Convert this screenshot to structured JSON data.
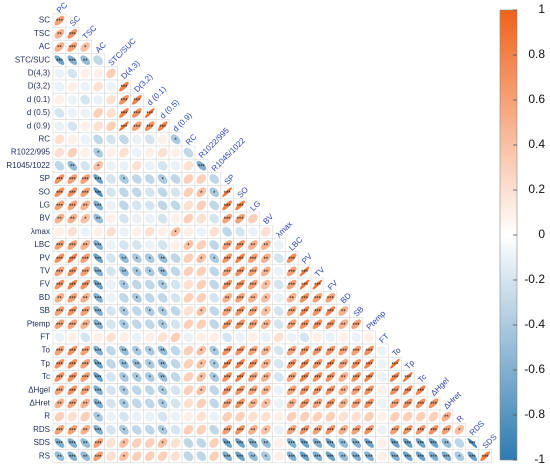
{
  "chart_data": {
    "type": "correlation",
    "variables": [
      "PC",
      "SC",
      "TSC",
      "AC",
      "STC/SUC",
      "D(4,3)",
      "D(3,2)",
      "d (0.1)",
      "d (0.5)",
      "d (0.9)",
      "RC",
      "R1022/995",
      "R1045/1022",
      "SP",
      "SO",
      "LG",
      "BV",
      "λmax",
      "LBC",
      "PV",
      "TV",
      "FV",
      "BD",
      "SB",
      "Ptemp",
      "FT",
      "To",
      "Tp",
      "Tc",
      "ΔHgel",
      "ΔHret",
      "R",
      "RDS",
      "SDS",
      "RS"
    ],
    "values": [
      [
        0.6
      ],
      [
        0.5,
        0.7
      ],
      [
        0.5,
        0.6,
        0.4
      ],
      [
        -0.7,
        -0.6,
        -0.5,
        -0.3
      ],
      [
        -0.1,
        -0.2,
        0.1,
        0.1,
        0.3
      ],
      [
        -0.1,
        0.1,
        -0.1,
        0.2,
        -0.1,
        0.8
      ],
      [
        0.1,
        -0.1,
        -0.2,
        -0.1,
        0.2,
        0.7,
        0.8
      ],
      [
        -0.2,
        -0.1,
        -0.1,
        0.3,
        0.2,
        0.8,
        0.7,
        0.9
      ],
      [
        -0.1,
        -0.2,
        0.1,
        0.2,
        0.3,
        0.9,
        0.6,
        0.7,
        0.8
      ],
      [
        0.2,
        0.1,
        -0.1,
        -0.3,
        -0.2,
        -0.3,
        -0.1,
        -0.2,
        0.1,
        -0.4
      ],
      [
        0.2,
        0.3,
        0.1,
        -0.4,
        0.1,
        0.2,
        -0.1,
        0.1,
        0.2,
        0.1,
        -0.3
      ],
      [
        -0.3,
        -0.5,
        -0.2,
        0.4,
        -0.1,
        -0.1,
        0.2,
        -0.1,
        -0.2,
        -0.1,
        0.2,
        -0.6
      ],
      [
        0.7,
        0.6,
        0.6,
        -0.7,
        -0.2,
        -0.4,
        -0.3,
        -0.3,
        -0.4,
        -0.3,
        0.3,
        0.3,
        -0.3
      ],
      [
        0.7,
        0.7,
        0.6,
        -0.8,
        -0.2,
        -0.3,
        -0.3,
        -0.2,
        -0.3,
        -0.2,
        0.3,
        0.4,
        -0.4,
        0.9
      ],
      [
        0.6,
        0.6,
        0.5,
        -0.6,
        -0.1,
        -0.3,
        -0.2,
        -0.2,
        -0.3,
        -0.3,
        0.2,
        0.3,
        -0.3,
        0.8,
        0.8
      ],
      [
        0.5,
        0.5,
        0.4,
        -0.5,
        0.1,
        -0.2,
        -0.1,
        -0.1,
        -0.2,
        0.1,
        0.3,
        0.2,
        -0.2,
        0.6,
        0.6,
        0.3
      ],
      [
        0.1,
        0.2,
        -0.1,
        0.1,
        0.2,
        -0.1,
        0.1,
        0.2,
        0.1,
        0.4,
        0.1,
        -0.1,
        0.2,
        -0.3,
        -0.2,
        -0.1,
        0.2
      ],
      [
        0.6,
        0.6,
        0.5,
        -0.6,
        -0.1,
        -0.2,
        -0.2,
        -0.1,
        -0.2,
        0.1,
        0.4,
        0.3,
        -0.3,
        0.6,
        0.7,
        0.5,
        0.5,
        -0.1
      ],
      [
        0.7,
        0.8,
        0.6,
        -0.7,
        -0.2,
        -0.5,
        -0.4,
        -0.4,
        -0.5,
        -0.3,
        0.3,
        0.4,
        -0.4,
        0.7,
        0.8,
        0.6,
        0.5,
        -0.2,
        0.7
      ],
      [
        0.6,
        0.7,
        0.6,
        -0.6,
        -0.2,
        -0.5,
        -0.4,
        -0.4,
        -0.5,
        -0.3,
        0.3,
        0.3,
        -0.3,
        0.6,
        0.7,
        0.6,
        0.5,
        -0.1,
        0.6,
        0.9
      ],
      [
        0.7,
        0.8,
        0.7,
        -0.7,
        -0.1,
        -0.4,
        -0.3,
        -0.3,
        -0.4,
        -0.2,
        0.2,
        0.3,
        -0.3,
        0.7,
        0.7,
        0.6,
        0.4,
        -0.2,
        0.6,
        0.9,
        0.9
      ],
      [
        0.5,
        0.6,
        0.5,
        -0.6,
        -0.1,
        -0.3,
        -0.4,
        -0.3,
        -0.3,
        -0.2,
        0.3,
        0.3,
        -0.2,
        0.5,
        0.6,
        0.5,
        0.4,
        -0.1,
        0.5,
        0.7,
        0.6,
        0.6
      ],
      [
        0.6,
        0.7,
        0.6,
        -0.6,
        -0.2,
        -0.4,
        -0.3,
        -0.4,
        -0.4,
        -0.3,
        0.2,
        0.4,
        -0.3,
        0.6,
        0.7,
        0.6,
        0.4,
        -0.2,
        0.6,
        0.8,
        0.7,
        0.8,
        0.5
      ],
      [
        0.6,
        0.6,
        0.5,
        -0.6,
        -0.2,
        -0.4,
        -0.3,
        -0.3,
        -0.4,
        -0.2,
        0.3,
        0.3,
        -0.3,
        0.7,
        0.7,
        0.6,
        0.5,
        -0.2,
        0.6,
        0.7,
        0.7,
        0.7,
        0.5,
        0.6
      ],
      [
        -0.1,
        0.1,
        -0.2,
        0.1,
        0.2,
        0.1,
        -0.1,
        0.1,
        0.2,
        0.3,
        -0.1,
        0.1,
        0.1,
        -0.2,
        -0.1,
        0.1,
        -0.1,
        0.2,
        -0.1,
        -0.2,
        0.1,
        -0.1,
        0.1,
        -0.1,
        0.1
      ],
      [
        0.6,
        0.7,
        0.6,
        -0.6,
        -0.3,
        -0.5,
        -0.4,
        -0.4,
        -0.5,
        -0.3,
        0.3,
        0.4,
        -0.4,
        0.7,
        0.7,
        0.6,
        0.5,
        -0.2,
        0.6,
        0.7,
        0.7,
        0.7,
        0.6,
        0.6,
        0.7,
        -0.1
      ],
      [
        0.7,
        0.7,
        0.6,
        -0.7,
        -0.3,
        -0.5,
        -0.5,
        -0.4,
        -0.5,
        -0.3,
        0.3,
        0.4,
        -0.4,
        0.8,
        0.8,
        0.7,
        0.5,
        -0.2,
        0.7,
        0.8,
        0.7,
        0.8,
        0.6,
        0.7,
        0.8,
        -0.1,
        0.9
      ],
      [
        0.7,
        0.7,
        0.6,
        -0.7,
        -0.2,
        -0.4,
        -0.4,
        -0.4,
        -0.5,
        -0.3,
        0.3,
        0.4,
        -0.4,
        0.7,
        0.8,
        0.6,
        0.5,
        -0.2,
        0.6,
        0.8,
        0.7,
        0.7,
        0.5,
        0.7,
        0.8,
        -0.1,
        0.8,
        0.9
      ],
      [
        0.6,
        0.7,
        0.6,
        -0.6,
        -0.2,
        -0.4,
        -0.3,
        -0.3,
        -0.4,
        -0.2,
        0.3,
        0.4,
        -0.3,
        0.7,
        0.7,
        0.6,
        0.5,
        -0.1,
        0.6,
        0.7,
        0.7,
        0.7,
        0.5,
        0.6,
        0.7,
        0.1,
        0.7,
        0.8,
        0.8
      ],
      [
        0.5,
        0.6,
        0.5,
        -0.6,
        -0.2,
        -0.4,
        -0.3,
        -0.3,
        -0.4,
        -0.2,
        0.2,
        0.3,
        -0.3,
        0.6,
        0.7,
        0.5,
        0.4,
        -0.1,
        0.5,
        0.7,
        0.6,
        0.7,
        0.5,
        0.6,
        0.7,
        -0.1,
        0.6,
        0.7,
        0.7,
        0.7
      ],
      [
        0.3,
        0.2,
        0.3,
        -0.4,
        -0.1,
        -0.2,
        -0.1,
        -0.1,
        -0.2,
        -0.1,
        0.1,
        0.2,
        -0.1,
        0.3,
        0.3,
        0.2,
        0.2,
        0.1,
        0.3,
        0.3,
        0.3,
        0.3,
        0.2,
        0.2,
        0.3,
        0.1,
        0.3,
        0.3,
        0.3,
        0.3,
        0.5
      ],
      [
        0.6,
        0.6,
        0.5,
        -0.6,
        -0.2,
        -0.4,
        -0.3,
        -0.3,
        -0.4,
        -0.2,
        0.3,
        0.3,
        -0.3,
        0.6,
        0.7,
        0.5,
        0.4,
        -0.1,
        0.6,
        0.7,
        0.6,
        0.7,
        0.5,
        0.6,
        0.7,
        -0.1,
        0.6,
        0.7,
        0.7,
        0.7,
        0.6,
        0.4
      ],
      [
        -0.6,
        -0.6,
        -0.5,
        0.6,
        0.2,
        0.4,
        0.3,
        0.3,
        0.4,
        0.2,
        -0.3,
        -0.3,
        0.3,
        -0.7,
        -0.7,
        -0.6,
        -0.5,
        0.1,
        -0.6,
        -0.7,
        -0.6,
        -0.7,
        -0.5,
        -0.6,
        -0.7,
        0.1,
        -0.7,
        -0.7,
        -0.7,
        -0.7,
        -0.5,
        -0.3,
        -0.9
      ],
      [
        -0.5,
        -0.6,
        -0.5,
        0.6,
        0.2,
        0.4,
        0.3,
        0.3,
        0.3,
        0.2,
        -0.3,
        -0.3,
        0.3,
        -0.6,
        -0.7,
        -0.5,
        -0.4,
        0.1,
        -0.6,
        -0.7,
        -0.6,
        -0.7,
        -0.5,
        -0.6,
        -0.6,
        0.1,
        -0.6,
        -0.7,
        -0.7,
        -0.6,
        -0.6,
        -0.4,
        -0.7,
        0.8
      ]
    ],
    "significance": [
      [
        "***"
      ],
      [
        "**",
        "***"
      ],
      [
        "**",
        "***",
        "*"
      ],
      [
        "***",
        "***",
        "**",
        null
      ],
      [
        null,
        null,
        null,
        null,
        null
      ],
      [
        null,
        null,
        null,
        null,
        null,
        "***"
      ],
      [
        null,
        null,
        null,
        null,
        null,
        "***",
        "***"
      ],
      [
        null,
        null,
        null,
        null,
        null,
        "***",
        "***",
        "***"
      ],
      [
        null,
        null,
        null,
        null,
        null,
        "***",
        "***",
        "***",
        "***"
      ],
      [
        null,
        null,
        null,
        null,
        null,
        null,
        null,
        null,
        null,
        "*"
      ],
      [
        null,
        null,
        null,
        "*",
        null,
        null,
        null,
        null,
        null,
        null,
        null
      ],
      [
        null,
        "**",
        null,
        "*",
        null,
        null,
        null,
        null,
        null,
        null,
        null,
        "***"
      ],
      [
        "***",
        "***",
        "***",
        "***",
        null,
        "*",
        null,
        null,
        "*",
        null,
        null,
        null,
        null
      ],
      [
        "***",
        "***",
        "***",
        "***",
        null,
        null,
        null,
        null,
        null,
        null,
        null,
        "*",
        "*",
        "***"
      ],
      [
        "***",
        "***",
        "**",
        "***",
        null,
        null,
        null,
        null,
        null,
        null,
        null,
        null,
        null,
        "***",
        "***"
      ],
      [
        "**",
        "**",
        "*",
        "**",
        null,
        null,
        null,
        null,
        null,
        null,
        null,
        null,
        null,
        "***",
        "***",
        null
      ],
      [
        null,
        null,
        null,
        null,
        null,
        null,
        null,
        null,
        null,
        "*",
        null,
        null,
        null,
        null,
        null,
        null,
        null
      ],
      [
        "***",
        "***",
        "**",
        "***",
        null,
        null,
        null,
        null,
        null,
        null,
        "*",
        null,
        null,
        "***",
        "***",
        "**",
        "**",
        null
      ],
      [
        "***",
        "***",
        "***",
        "***",
        null,
        "**",
        "*",
        "*",
        "**",
        null,
        null,
        "*",
        "*",
        "***",
        "***",
        "***",
        "**",
        null,
        "***"
      ],
      [
        "***",
        "***",
        "***",
        "***",
        null,
        "**",
        "*",
        "*",
        "**",
        null,
        null,
        null,
        null,
        "***",
        "***",
        "***",
        "**",
        null,
        "***",
        "***"
      ],
      [
        "***",
        "***",
        "***",
        "***",
        null,
        "*",
        null,
        null,
        "*",
        null,
        null,
        null,
        null,
        "***",
        "***",
        "***",
        "*",
        null,
        "***",
        "***",
        "***"
      ],
      [
        "**",
        "***",
        "**",
        "***",
        null,
        null,
        "*",
        null,
        null,
        null,
        null,
        null,
        null,
        "**",
        "***",
        "**",
        "*",
        null,
        "**",
        "***",
        "***",
        "***"
      ],
      [
        "***",
        "***",
        "***",
        "***",
        null,
        "*",
        null,
        "*",
        "*",
        null,
        null,
        "*",
        null,
        "***",
        "***",
        "***",
        "*",
        null,
        "***",
        "***",
        "***",
        "***",
        "**"
      ],
      [
        "***",
        "***",
        "**",
        "***",
        null,
        "*",
        null,
        null,
        "*",
        null,
        null,
        null,
        null,
        "***",
        "***",
        "***",
        "**",
        null,
        "***",
        "***",
        "***",
        "***",
        "**",
        "***"
      ],
      [
        null,
        null,
        null,
        null,
        null,
        null,
        null,
        null,
        null,
        null,
        null,
        null,
        null,
        null,
        null,
        null,
        null,
        null,
        null,
        null,
        null,
        null,
        null,
        null,
        null
      ],
      [
        "***",
        "***",
        "***",
        "***",
        null,
        "**",
        "*",
        "*",
        "**",
        null,
        null,
        "*",
        "*",
        "***",
        "***",
        "***",
        "**",
        null,
        "***",
        "***",
        "***",
        "***",
        "***",
        "***",
        "***",
        null
      ],
      [
        "***",
        "***",
        "***",
        "***",
        null,
        "**",
        "**",
        "*",
        "**",
        null,
        null,
        "*",
        "*",
        "***",
        "***",
        "***",
        "**",
        null,
        "***",
        "***",
        "***",
        "***",
        "***",
        "***",
        "***",
        null,
        "***"
      ],
      [
        "***",
        "***",
        "***",
        "***",
        null,
        "*",
        "*",
        "*",
        "**",
        null,
        null,
        "*",
        "*",
        "***",
        "***",
        "***",
        "**",
        null,
        "***",
        "***",
        "***",
        "***",
        "**",
        "***",
        "***",
        null,
        "***",
        "***"
      ],
      [
        "***",
        "***",
        "***",
        "***",
        null,
        "*",
        null,
        null,
        "*",
        null,
        null,
        "*",
        null,
        "***",
        "***",
        "***",
        "**",
        null,
        "***",
        "***",
        "***",
        "***",
        "**",
        "***",
        "***",
        null,
        "***",
        "***",
        "***"
      ],
      [
        "**",
        "***",
        "**",
        "***",
        null,
        "*",
        null,
        null,
        "*",
        null,
        null,
        null,
        null,
        "***",
        "***",
        "**",
        "*",
        null,
        "**",
        "***",
        "***",
        "***",
        "**",
        "***",
        "***",
        null,
        "***",
        "***",
        "***",
        "***"
      ],
      [
        null,
        null,
        null,
        "*",
        null,
        null,
        null,
        null,
        null,
        null,
        null,
        null,
        null,
        null,
        null,
        null,
        null,
        null,
        null,
        null,
        null,
        null,
        null,
        null,
        null,
        null,
        null,
        null,
        null,
        null,
        "**"
      ],
      [
        "***",
        "***",
        "**",
        "***",
        null,
        "*",
        null,
        null,
        "*",
        null,
        null,
        null,
        null,
        "***",
        "***",
        "**",
        "*",
        null,
        "***",
        "***",
        "***",
        "***",
        "**",
        "***",
        "***",
        null,
        "***",
        "***",
        "***",
        "***",
        "***",
        "*"
      ],
      [
        "***",
        "***",
        "**",
        "***",
        null,
        "*",
        null,
        null,
        "*",
        null,
        null,
        null,
        null,
        "***",
        "***",
        "***",
        "**",
        null,
        "***",
        "***",
        "***",
        "***",
        "**",
        "***",
        "***",
        null,
        "***",
        "***",
        "***",
        "***",
        "**",
        null,
        "***"
      ],
      [
        "**",
        "***",
        "**",
        "***",
        null,
        "*",
        null,
        null,
        null,
        null,
        null,
        null,
        null,
        "***",
        "***",
        "**",
        "*",
        null,
        "***",
        "***",
        "***",
        "***",
        "**",
        "***",
        "***",
        null,
        "***",
        "***",
        "***",
        "***",
        "***",
        "*",
        "***",
        "***"
      ]
    ],
    "colors": [
      "#2d7bb0",
      "#ffffff",
      "#f0621a"
    ],
    "ylim": [
      -1,
      1
    ],
    "yticks": [
      1,
      0.8,
      0.6,
      0.4,
      0.2,
      0,
      -0.2,
      -0.4,
      -0.6,
      -0.8,
      -1
    ]
  }
}
